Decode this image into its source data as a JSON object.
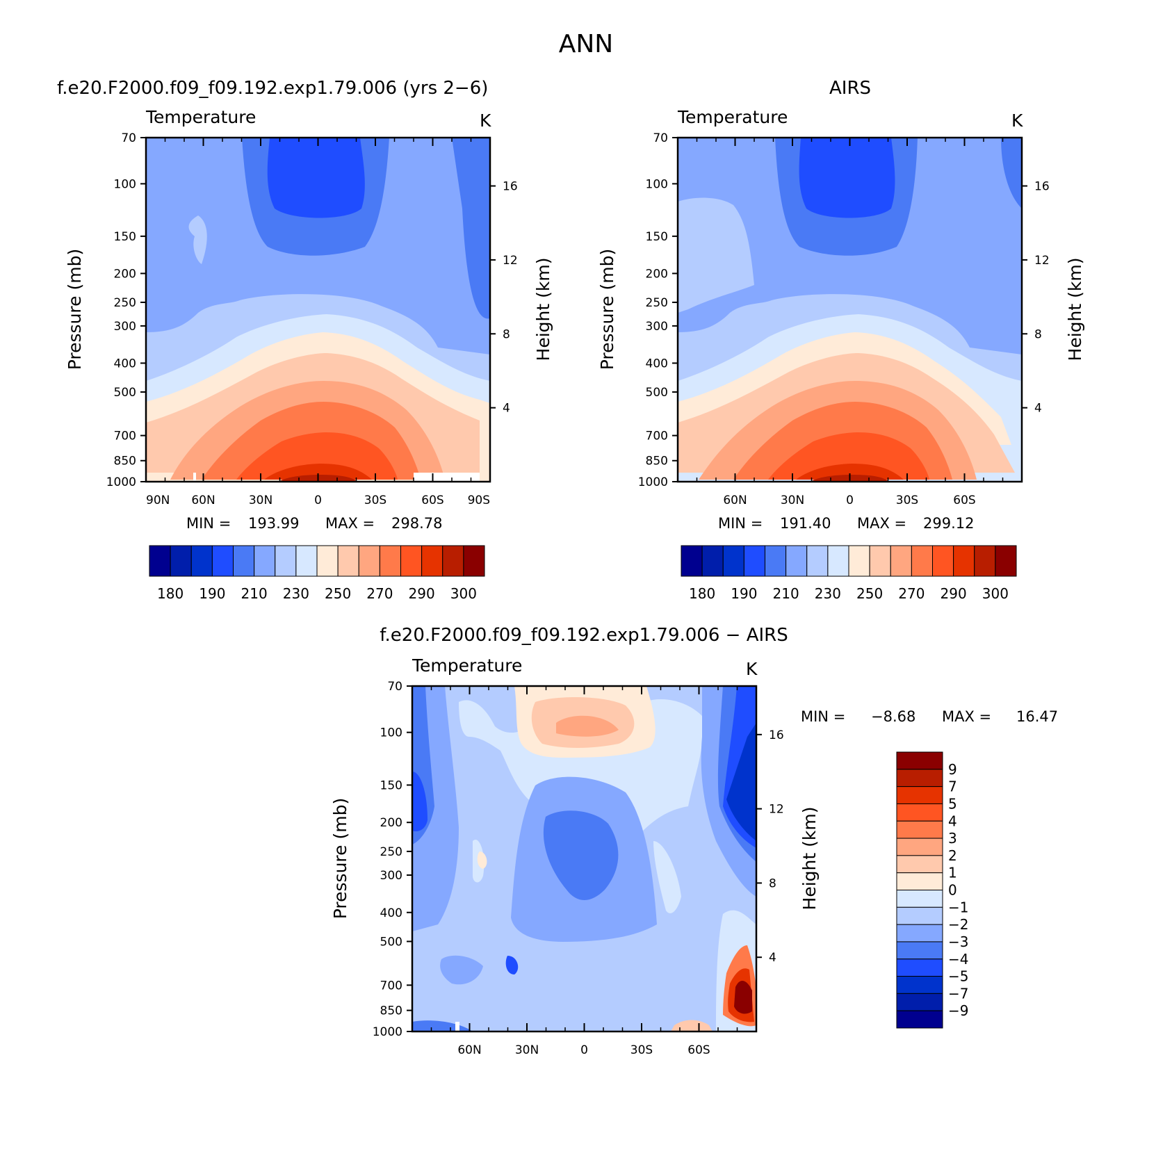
{
  "figure_title": "ANN",
  "chart_data": [
    {
      "id": "model",
      "type": "contour",
      "title": "f.e20.F2000.f09_f09.192.exp1.79.006 (yrs 2−6)",
      "variable": "Temperature",
      "units": "K",
      "ylabel": "Pressure (mb)",
      "y2label": "Height (km)",
      "x_ticks": [
        "90N",
        "60N",
        "30N",
        "0",
        "30S",
        "60S",
        "90S"
      ],
      "xlim": [
        90,
        -90
      ],
      "y_ticks": [
        70,
        100,
        150,
        200,
        250,
        300,
        400,
        500,
        700,
        850,
        1000
      ],
      "ylim": [
        70,
        1000
      ],
      "y2_ticks": [
        16,
        12,
        8,
        4
      ],
      "min_label": "MIN =",
      "min_value": "193.99",
      "max_label": "MAX =",
      "max_value": "298.78",
      "levels": [
        180,
        190,
        210,
        230,
        250,
        270,
        290,
        300
      ],
      "colorbar_labels": [
        "180",
        "190",
        "210",
        "230",
        "250",
        "270",
        "290",
        "300"
      ]
    },
    {
      "id": "obs",
      "type": "contour",
      "title": "AIRS",
      "variable": "Temperature",
      "units": "K",
      "ylabel": "Pressure (mb)",
      "y2label": "Height (km)",
      "x_ticks": [
        "60N",
        "30N",
        "0",
        "30S",
        "60S"
      ],
      "xlim": [
        90,
        -90
      ],
      "y_ticks": [
        70,
        100,
        150,
        200,
        250,
        300,
        400,
        500,
        700,
        850,
        1000
      ],
      "ylim": [
        70,
        1000
      ],
      "y2_ticks": [
        16,
        12,
        8,
        4
      ],
      "min_label": "MIN =",
      "min_value": "191.40",
      "max_label": "MAX =",
      "max_value": "299.12",
      "levels": [
        180,
        190,
        210,
        230,
        250,
        270,
        290,
        300
      ],
      "colorbar_labels": [
        "180",
        "190",
        "210",
        "230",
        "250",
        "270",
        "290",
        "300"
      ]
    },
    {
      "id": "diff",
      "type": "contour",
      "title": "f.e20.F2000.f09_f09.192.exp1.79.006 − AIRS",
      "variable": "Temperature",
      "units": "K",
      "ylabel": "Pressure (mb)",
      "y2label": "Height (km)",
      "x_ticks": [
        "60N",
        "30N",
        "0",
        "30S",
        "60S"
      ],
      "xlim": [
        90,
        -90
      ],
      "y_ticks": [
        70,
        100,
        150,
        200,
        250,
        300,
        400,
        500,
        700,
        850,
        1000
      ],
      "ylim": [
        70,
        1000
      ],
      "y2_ticks": [
        16,
        12,
        8,
        4
      ],
      "min_label": "MIN =",
      "min_value": "−8.68",
      "max_label": "MAX =",
      "max_value": "16.47",
      "levels": [
        9,
        7,
        5,
        4,
        3,
        2,
        1,
        0,
        -1,
        -2,
        -3,
        -4,
        -5,
        -7,
        -9
      ],
      "colorbar_labels": [
        "9",
        "7",
        "5",
        "4",
        "3",
        "2",
        "1",
        "0",
        "−1",
        "−2",
        "−3",
        "−4",
        "−5",
        "−7",
        "−9"
      ]
    }
  ],
  "palette": [
    "#00008f",
    "#001eab",
    "#0033cc",
    "#1f4dff",
    "#4a7af5",
    "#85a8ff",
    "#b4ccff",
    "#d7e8ff",
    "#ffebd8",
    "#ffc9ad",
    "#ffa680",
    "#ff7a4a",
    "#ff5522",
    "#e63300",
    "#b81e00",
    "#8a0000"
  ]
}
